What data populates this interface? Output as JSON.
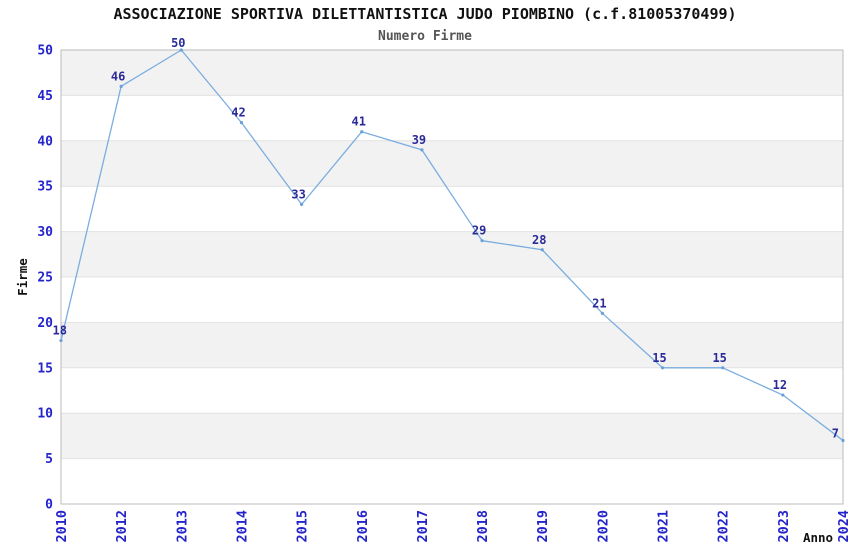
{
  "chart_data": {
    "type": "line",
    "title": "ASSOCIAZIONE SPORTIVA DILETTANTISTICA JUDO PIOMBINO (c.f.81005370499)",
    "subtitle": "Numero Firme",
    "xlabel": "Anno",
    "ylabel": "Firme",
    "categories": [
      "2010",
      "2012",
      "2013",
      "2014",
      "2015",
      "2016",
      "2017",
      "2018",
      "2019",
      "2020",
      "2021",
      "2022",
      "2023",
      "2024"
    ],
    "values": [
      18,
      46,
      50,
      42,
      33,
      41,
      39,
      29,
      28,
      21,
      15,
      15,
      12,
      7
    ],
    "value_labels": [
      "18",
      "46",
      "50",
      "42",
      "33",
      "41",
      "39",
      "29",
      "28",
      "21",
      "15",
      "15",
      "12",
      "7"
    ],
    "ylim": [
      0,
      50
    ],
    "ytick_step": 5,
    "yticks": [
      "0",
      "5",
      "10",
      "15",
      "20",
      "25",
      "30",
      "35",
      "40",
      "45",
      "50"
    ],
    "grid": "horizontal-bands-every-5",
    "legend": "none",
    "colors": {
      "line": "#7aade0",
      "point": "#68a0d8",
      "tick_label": "#2424cc",
      "value_label": "#2a2a99",
      "band": "#f2f2f2",
      "gridline": "#e2e2e2",
      "plot_border": "#bbbbbb",
      "title": "#111111",
      "subtitle": "#555555",
      "axis_title": "#111111",
      "background": "#ffffff"
    }
  }
}
